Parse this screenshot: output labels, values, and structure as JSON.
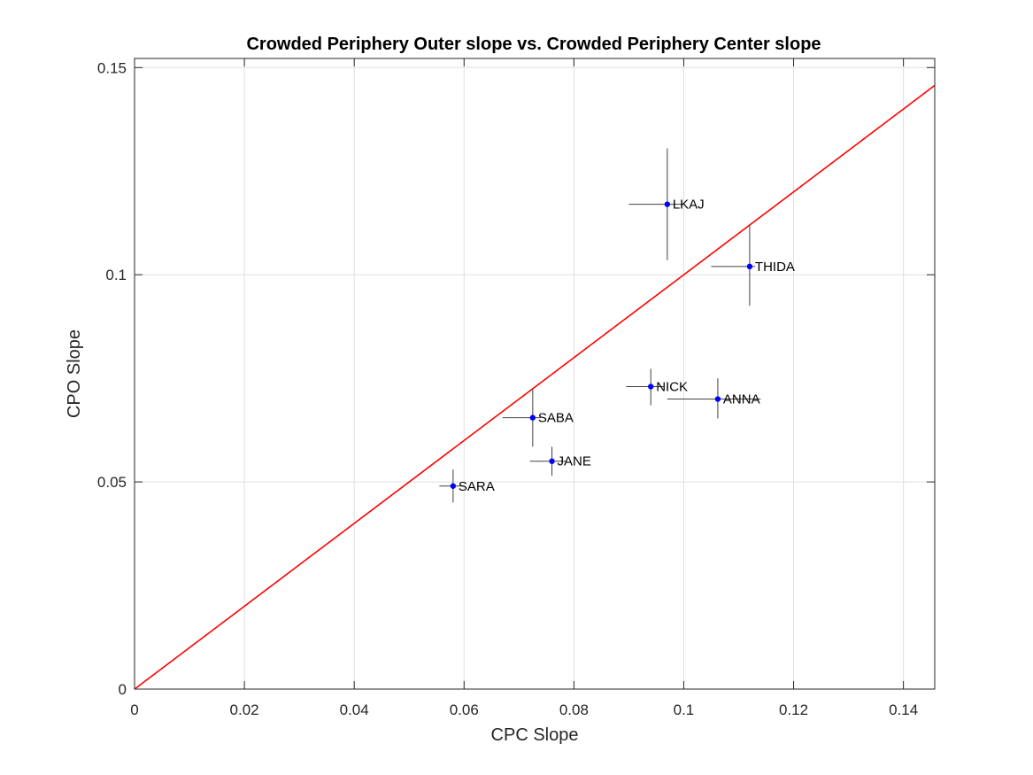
{
  "chart_data": {
    "type": "scatter",
    "title": "Crowded Periphery Outer slope vs. Crowded Periphery Center slope",
    "xlabel": "CPC Slope",
    "ylabel": "CPO Slope",
    "xlim": [
      0,
      0.1457
    ],
    "ylim": [
      0,
      0.1522
    ],
    "xticks": [
      0,
      0.02,
      0.04,
      0.06,
      0.08,
      0.1,
      0.12,
      0.14
    ],
    "xtick_labels": [
      "0",
      "0.02",
      "0.04",
      "0.06",
      "0.08",
      "0.1",
      "0.12",
      "0.14"
    ],
    "yticks": [
      0,
      0.05,
      0.1,
      0.15
    ],
    "ytick_labels": [
      "0",
      "0.05",
      "0.1",
      "0.15"
    ],
    "grid": true,
    "reference_line": {
      "type": "identity",
      "color": "#ff0000"
    },
    "point_color": "#0000ff",
    "errorbar_color": "#404040",
    "points": [
      {
        "label": "LKAJ",
        "x": 0.097,
        "y": 0.117,
        "xerr": [
          0.09,
          0.1
        ],
        "yerr": [
          0.1035,
          0.1305
        ]
      },
      {
        "label": "THIDA",
        "x": 0.112,
        "y": 0.102,
        "xerr": [
          0.105,
          0.113
        ],
        "yerr": [
          0.0925,
          0.112
        ]
      },
      {
        "label": "NICK",
        "x": 0.094,
        "y": 0.073,
        "xerr": [
          0.0895,
          0.0965
        ],
        "yerr": [
          0.0685,
          0.0773
        ]
      },
      {
        "label": "ANNA",
        "x": 0.1062,
        "y": 0.07,
        "xerr": [
          0.097,
          0.114
        ],
        "yerr": [
          0.0653,
          0.075
        ]
      },
      {
        "label": "SABA",
        "x": 0.0725,
        "y": 0.0655,
        "xerr": [
          0.067,
          0.074
        ],
        "yerr": [
          0.0585,
          0.0725
        ]
      },
      {
        "label": "JANE",
        "x": 0.076,
        "y": 0.055,
        "xerr": [
          0.072,
          0.0785
        ],
        "yerr": [
          0.0515,
          0.0585
        ]
      },
      {
        "label": "SARA",
        "x": 0.058,
        "y": 0.049,
        "xerr": [
          0.0555,
          0.06
        ],
        "yerr": [
          0.045,
          0.053
        ]
      }
    ]
  }
}
